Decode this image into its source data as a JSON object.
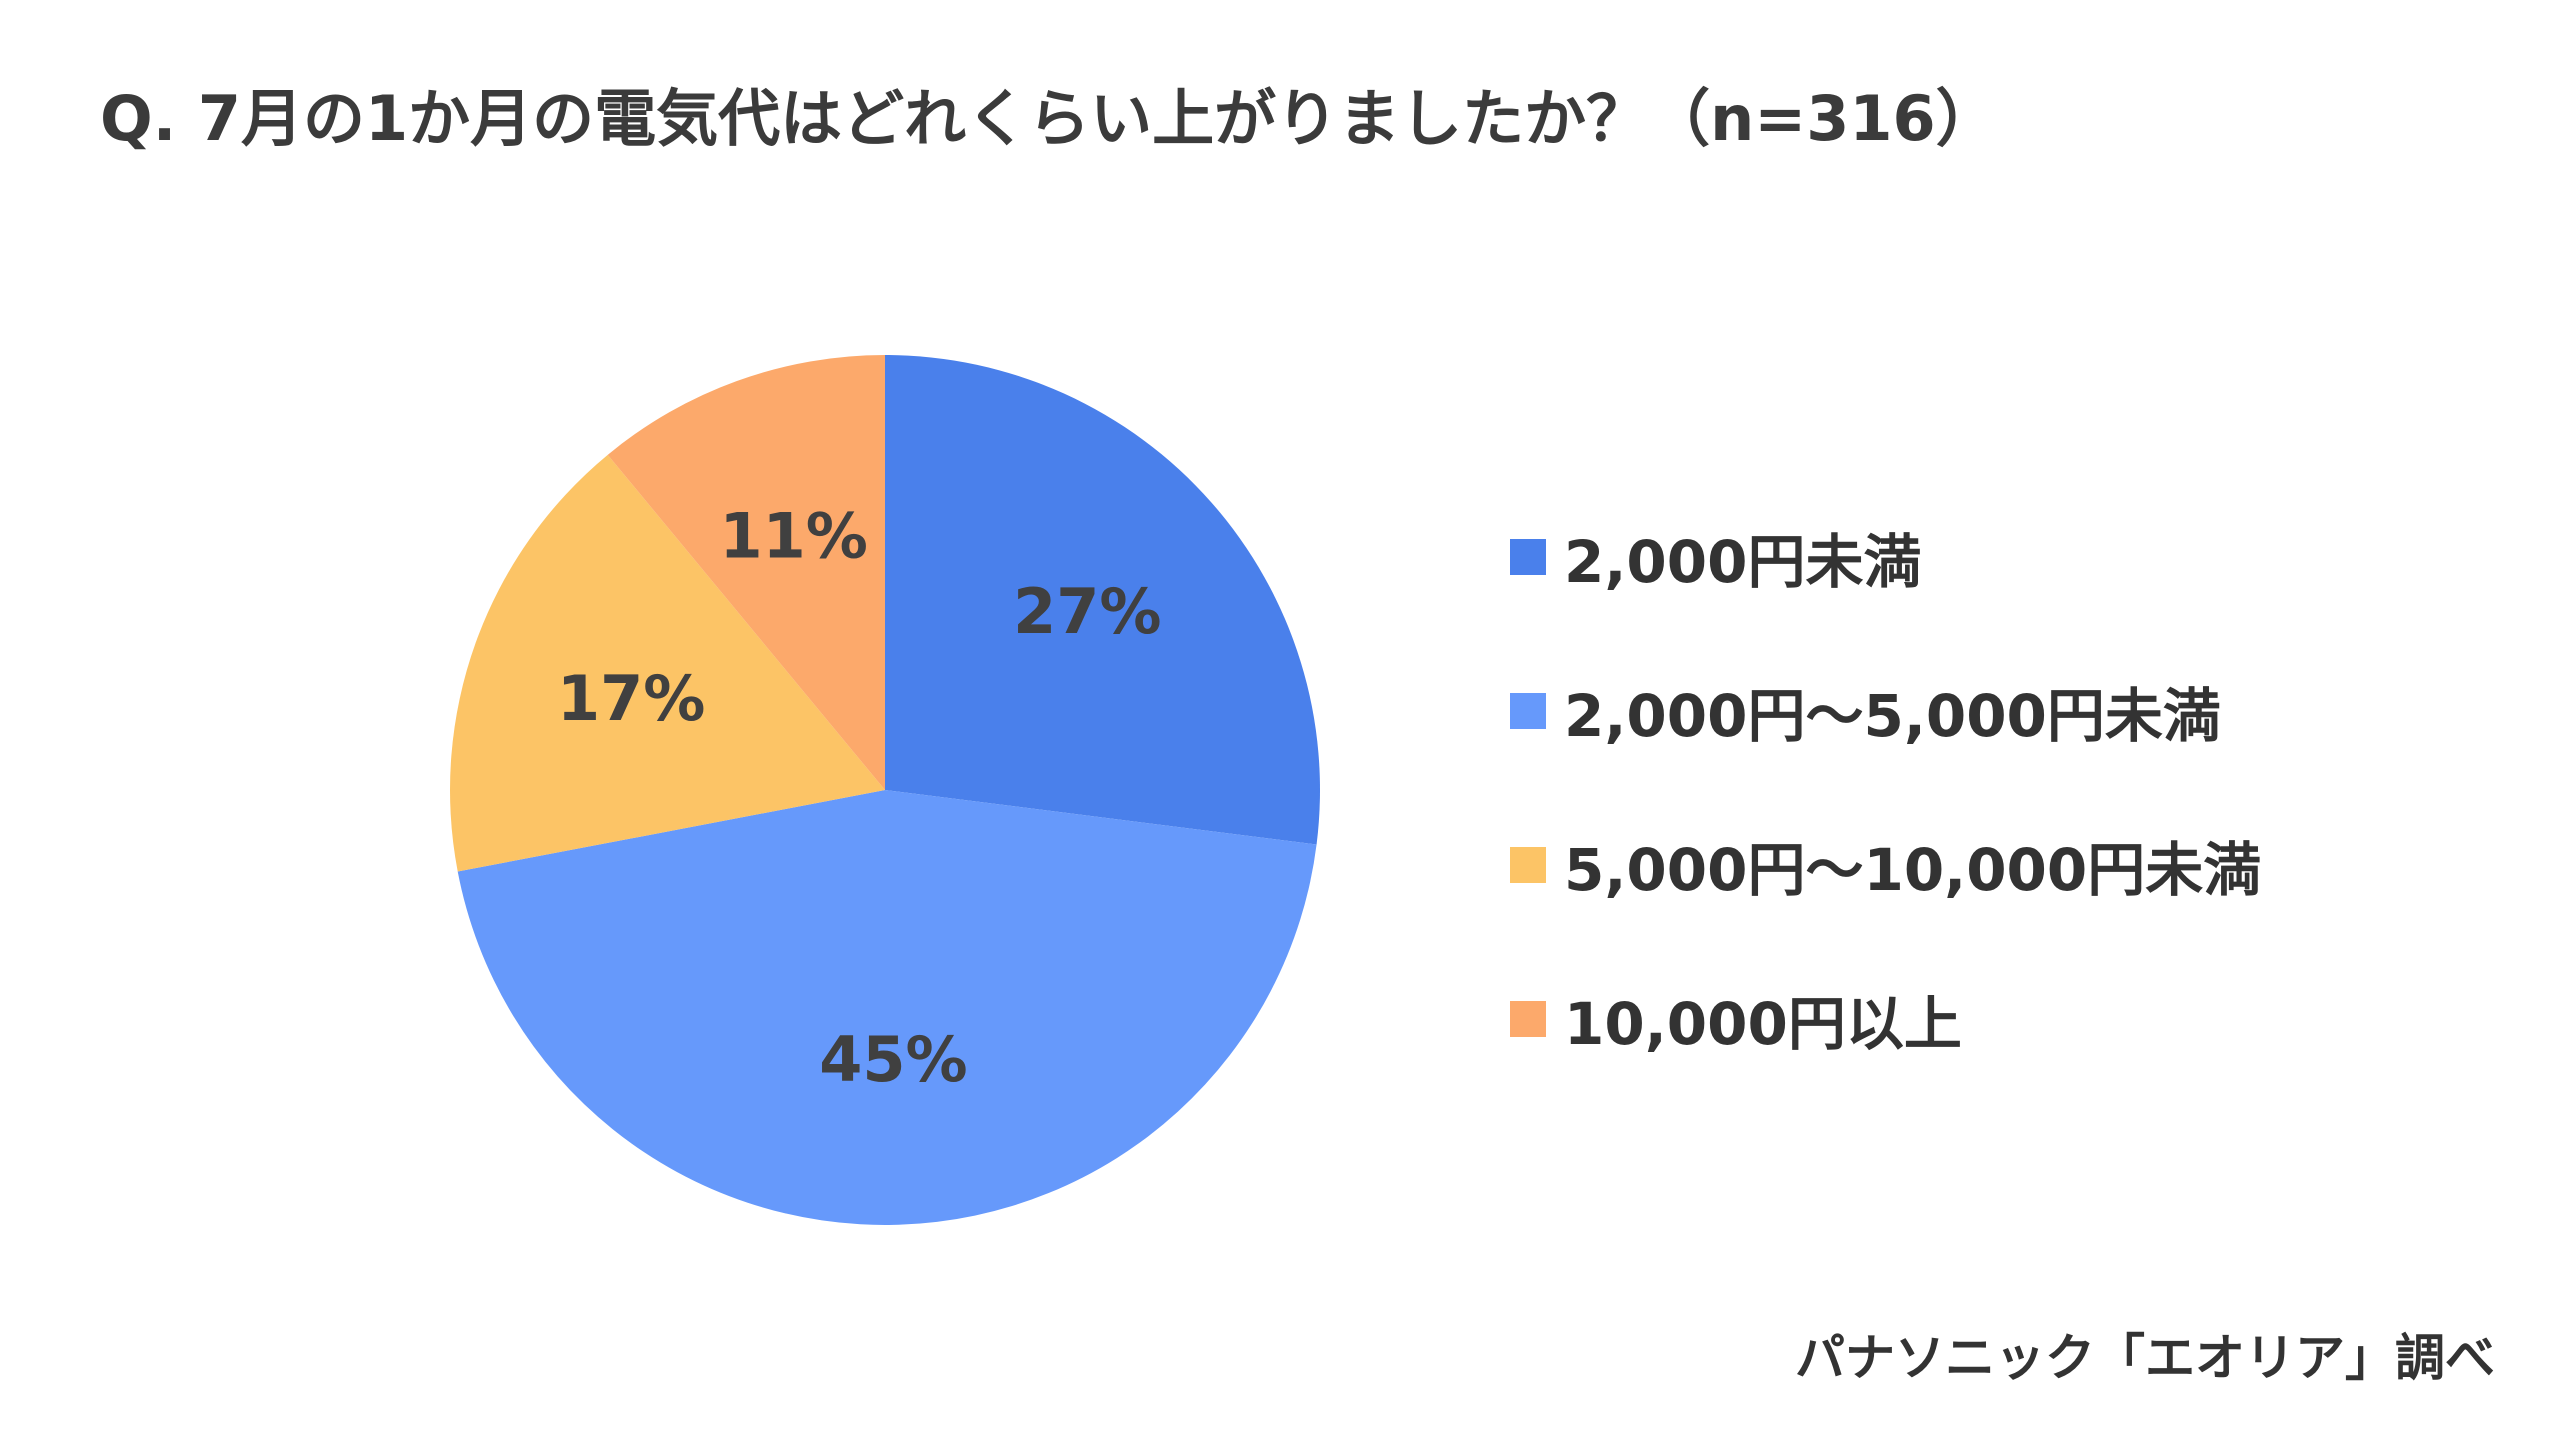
{
  "title": "Q. 7月の1か月の電気代はどれくらい上がりましたか？（n=316）",
  "source": "パナソニック「エオリア」調べ",
  "chart_data": {
    "type": "pie",
    "title": "Q. 7月の1か月の電気代はどれくらい上がりましたか？（n=316）",
    "categories": [
      "2,000円未満",
      "2,000円～5,000円未満",
      "5,000円～10,000円未満",
      "10,000円以上"
    ],
    "values": [
      27,
      45,
      17,
      11
    ],
    "labels": [
      "27%",
      "45%",
      "17%",
      "11%"
    ],
    "unit": "%",
    "start_angle": "12 o'clock",
    "direction": "clockwise",
    "legend_position": "right",
    "colors": [
      "#4a80eb",
      "#6699fb",
      "#fcc466",
      "#fca96b"
    ]
  }
}
